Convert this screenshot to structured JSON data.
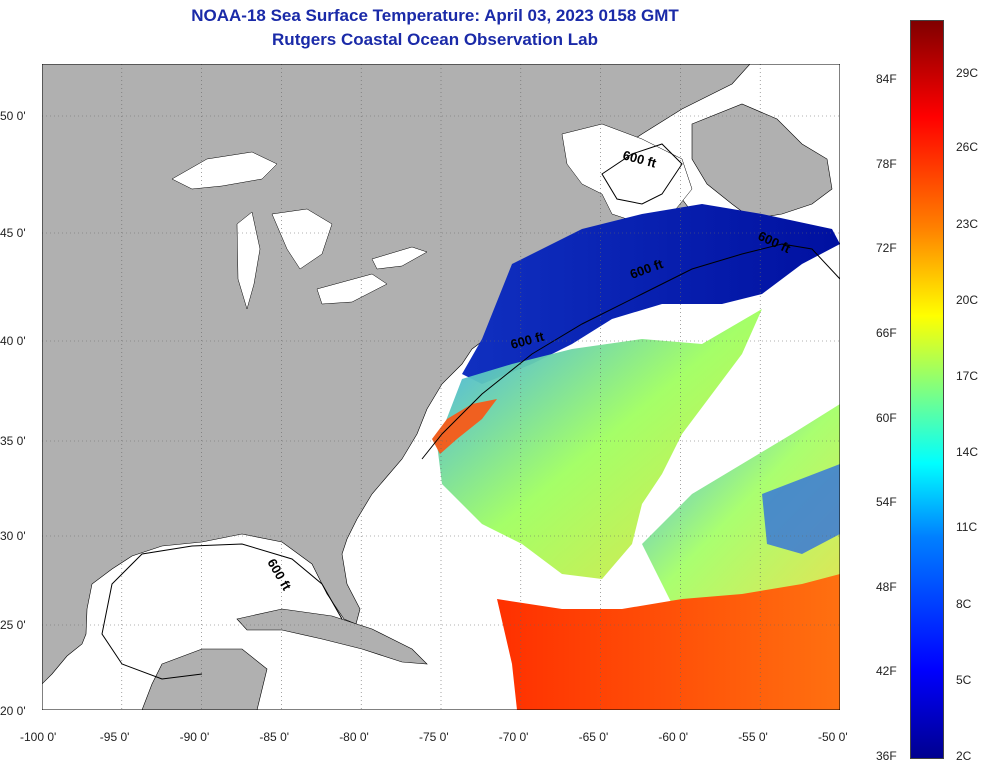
{
  "title_line1": "NOAA-18 Sea Surface Temperature:  April 03, 2023 0158 GMT",
  "title_line2": "Rutgers Coastal Ocean Observation Lab",
  "lat_labels": [
    "50 0'",
    "45 0'",
    "40 0'",
    "35 0'",
    "30 0'",
    "25 0'",
    "20 0'"
  ],
  "lon_labels": [
    "-100 0'",
    "-95 0'",
    "-90 0'",
    "-85 0'",
    "-80 0'",
    "-75 0'",
    "-70 0'",
    "-65 0'",
    "-60 0'",
    "-55 0'",
    "-50 0'"
  ],
  "contour_label": "600 ft",
  "colorbar_f": [
    "84F",
    "78F",
    "72F",
    "66F",
    "60F",
    "54F",
    "48F",
    "42F",
    "36F"
  ],
  "colorbar_c": [
    "29C",
    "26C",
    "23C",
    "20C",
    "17C",
    "14C",
    "11C",
    "8C",
    "5C",
    "2C"
  ],
  "colors": {
    "land": "#b0b0b0",
    "title": "#1a2aa8",
    "no_data": "#ffffff"
  }
}
